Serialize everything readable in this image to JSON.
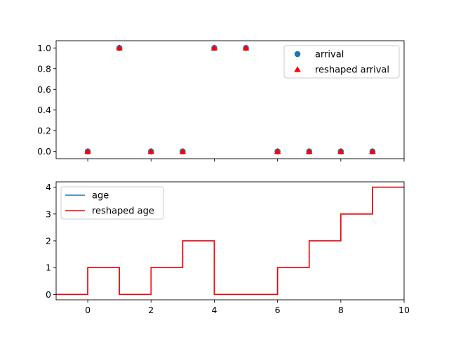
{
  "chart_data": [
    {
      "type": "scatter",
      "title": "",
      "xlabel": "",
      "ylabel": "",
      "xlim": [
        -1,
        10
      ],
      "ylim": [
        -0.07,
        1.07
      ],
      "xticks": [
        0,
        2,
        4,
        6,
        8,
        10
      ],
      "show_xtick_labels": false,
      "yticks": [
        0.0,
        0.2,
        0.4,
        0.6,
        0.8,
        1.0
      ],
      "ytick_labels": [
        "0.0",
        "0.2",
        "0.4",
        "0.6",
        "0.8",
        "1.0"
      ],
      "legend_position": "upper right",
      "grid": false,
      "series": [
        {
          "name": "arrival",
          "marker": "circle",
          "color": "#1f77b4",
          "x": [
            0,
            1,
            2,
            3,
            4,
            5,
            6,
            7,
            8,
            9
          ],
          "y": [
            0,
            1,
            0,
            0,
            1,
            1,
            0,
            0,
            0,
            0
          ]
        },
        {
          "name": "reshaped arrival",
          "marker": "triangle",
          "color": "#ff0000",
          "x": [
            0,
            1,
            2,
            3,
            4,
            5,
            6,
            7,
            8,
            9
          ],
          "y": [
            0,
            1,
            0,
            0,
            1,
            1,
            0,
            0,
            0,
            0
          ]
        }
      ]
    },
    {
      "type": "line",
      "title": "",
      "xlabel": "",
      "ylabel": "",
      "xlim": [
        -1,
        10
      ],
      "ylim": [
        -0.2,
        4.2
      ],
      "xticks": [
        0,
        2,
        4,
        6,
        8,
        10
      ],
      "xtick_labels": [
        "0",
        "2",
        "4",
        "6",
        "8",
        "10"
      ],
      "yticks": [
        0,
        1,
        2,
        3,
        4
      ],
      "ytick_labels": [
        "0",
        "1",
        "2",
        "3",
        "4"
      ],
      "legend_position": "upper left",
      "grid": false,
      "step": "post",
      "series": [
        {
          "name": "age",
          "color": "#1f77b4",
          "x": [
            -1,
            0,
            1,
            2,
            3,
            4,
            5,
            6,
            7,
            8,
            9,
            10
          ],
          "y": [
            0,
            1,
            0,
            1,
            2,
            0,
            0,
            1,
            2,
            3,
            4,
            4
          ]
        },
        {
          "name": "reshaped age",
          "color": "#ff0000",
          "x": [
            -1,
            0,
            1,
            2,
            3,
            4,
            5,
            6,
            7,
            8,
            9,
            10
          ],
          "y": [
            0,
            1,
            0,
            1,
            2,
            0,
            0,
            1,
            2,
            3,
            4,
            4
          ]
        }
      ]
    }
  ]
}
